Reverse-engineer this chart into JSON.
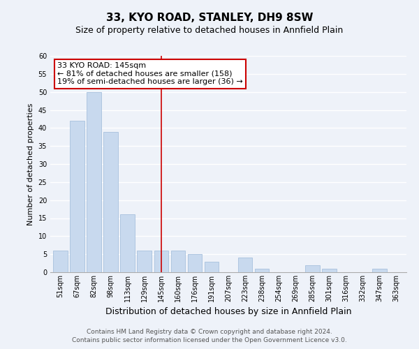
{
  "title": "33, KYO ROAD, STANLEY, DH9 8SW",
  "subtitle": "Size of property relative to detached houses in Annfield Plain",
  "xlabel": "Distribution of detached houses by size in Annfield Plain",
  "ylabel": "Number of detached properties",
  "bar_labels": [
    "51sqm",
    "67sqm",
    "82sqm",
    "98sqm",
    "113sqm",
    "129sqm",
    "145sqm",
    "160sqm",
    "176sqm",
    "191sqm",
    "207sqm",
    "223sqm",
    "238sqm",
    "254sqm",
    "269sqm",
    "285sqm",
    "301sqm",
    "316sqm",
    "332sqm",
    "347sqm",
    "363sqm"
  ],
  "bar_values": [
    6,
    42,
    50,
    39,
    16,
    6,
    6,
    6,
    5,
    3,
    0,
    4,
    1,
    0,
    0,
    2,
    1,
    0,
    0,
    1,
    0
  ],
  "bar_color": "#c8d9ee",
  "bar_edge_color": "#aec6e0",
  "vline_x_index": 6,
  "vline_color": "#cc0000",
  "ylim": [
    0,
    60
  ],
  "yticks": [
    0,
    5,
    10,
    15,
    20,
    25,
    30,
    35,
    40,
    45,
    50,
    55,
    60
  ],
  "annotation_title": "33 KYO ROAD: 145sqm",
  "annotation_line1": "← 81% of detached houses are smaller (158)",
  "annotation_line2": "19% of semi-detached houses are larger (36) →",
  "annotation_box_color": "#ffffff",
  "annotation_box_edge": "#cc0000",
  "footer_line1": "Contains HM Land Registry data © Crown copyright and database right 2024.",
  "footer_line2": "Contains public sector information licensed under the Open Government Licence v3.0.",
  "background_color": "#eef2f9",
  "grid_color": "#ffffff",
  "title_fontsize": 11,
  "subtitle_fontsize": 9,
  "xlabel_fontsize": 9,
  "ylabel_fontsize": 8,
  "tick_fontsize": 7,
  "annotation_fontsize": 8,
  "footer_fontsize": 6.5
}
